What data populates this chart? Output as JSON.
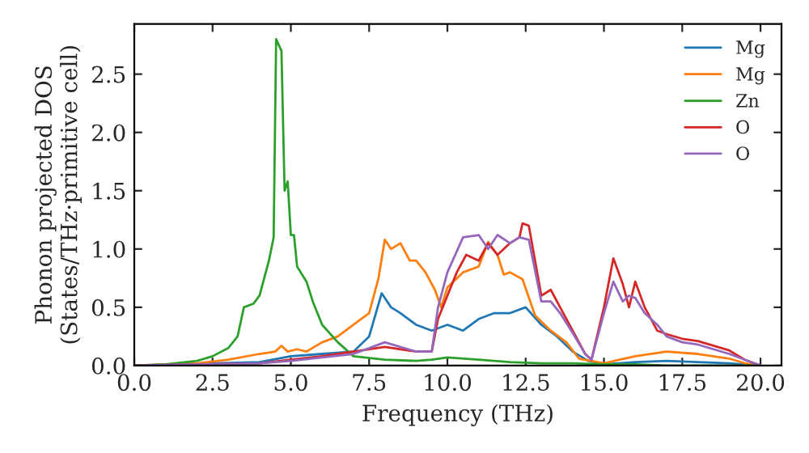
{
  "chart_data": {
    "type": "line",
    "xlabel": "Frequency (THz)",
    "ylabel": "Phonon projected DOS\n(States/THz·primitive cell)",
    "xlim": [
      0,
      20.67
    ],
    "ylim": [
      0,
      2.93
    ],
    "xticks": [
      {
        "value": 0,
        "label": "0.0"
      },
      {
        "value": 2.5,
        "label": "2.5"
      },
      {
        "value": 5,
        "label": "5.0"
      },
      {
        "value": 7.5,
        "label": "7.5"
      },
      {
        "value": 10,
        "label": "10.0"
      },
      {
        "value": 12.5,
        "label": "12.5"
      },
      {
        "value": 15,
        "label": "15.0"
      },
      {
        "value": 17.5,
        "label": "17.5"
      },
      {
        "value": 20,
        "label": "20.0"
      }
    ],
    "yticks": [
      {
        "value": 0,
        "label": "0.0"
      },
      {
        "value": 0.5,
        "label": "0.5"
      },
      {
        "value": 1,
        "label": "1.0"
      },
      {
        "value": 1.5,
        "label": "1.5"
      },
      {
        "value": 2,
        "label": "2.0"
      },
      {
        "value": 2.5,
        "label": "2.5"
      }
    ],
    "legend": "top right",
    "grid": false,
    "marker": "none",
    "line_style": "solid",
    "series": [
      {
        "name": "Mg",
        "color": "#1f77b4",
        "x": [
          0,
          4,
          5,
          6,
          7,
          7.5,
          7.9,
          8.2,
          8.5,
          9,
          9.5,
          10,
          10.5,
          11,
          11.5,
          12,
          12.5,
          13,
          13.5,
          14,
          14.5,
          15,
          16,
          17,
          18,
          19,
          20
        ],
        "values": [
          0,
          0.03,
          0.08,
          0.1,
          0.12,
          0.25,
          0.62,
          0.5,
          0.45,
          0.35,
          0.3,
          0.35,
          0.3,
          0.4,
          0.45,
          0.45,
          0.5,
          0.35,
          0.25,
          0.12,
          0.04,
          0.01,
          0.03,
          0.04,
          0.03,
          0.02,
          0
        ]
      },
      {
        "name": "Mg",
        "color": "#ff7f0e",
        "x": [
          0,
          2,
          3,
          4,
          4.5,
          4.7,
          4.9,
          5.2,
          5.5,
          6,
          6.5,
          7,
          7.5,
          7.8,
          8,
          8.2,
          8.5,
          8.8,
          9,
          9.3,
          9.6,
          9.8,
          10,
          10.5,
          11,
          11.3,
          11.6,
          11.8,
          12,
          12.4,
          12.8,
          13.3,
          13.8,
          14.2,
          15,
          15.5,
          16,
          17,
          18,
          19,
          19.5,
          20
        ],
        "values": [
          0,
          0.02,
          0.05,
          0.1,
          0.12,
          0.17,
          0.12,
          0.14,
          0.12,
          0.2,
          0.25,
          0.35,
          0.45,
          0.75,
          1.08,
          1.0,
          1.05,
          0.9,
          0.9,
          0.8,
          0.65,
          0.5,
          0.67,
          0.8,
          0.85,
          1.06,
          0.95,
          0.78,
          0.8,
          0.74,
          0.43,
          0.3,
          0.2,
          0.06,
          0.02,
          0.05,
          0.08,
          0.12,
          0.1,
          0.06,
          0.02,
          0
        ]
      },
      {
        "name": "Zn",
        "color": "#2ca02c",
        "x": [
          0,
          1,
          2,
          2.5,
          3,
          3.3,
          3.5,
          3.8,
          4,
          4.3,
          4.45,
          4.53,
          4.7,
          4.8,
          4.9,
          5,
          5.1,
          5.2,
          5.5,
          5.7,
          6,
          6.5,
          7,
          8,
          9,
          9.5,
          10,
          11,
          12,
          13,
          14,
          15,
          16,
          17,
          20
        ],
        "values": [
          0,
          0.01,
          0.04,
          0.08,
          0.15,
          0.25,
          0.5,
          0.53,
          0.6,
          0.9,
          1.1,
          2.8,
          2.7,
          1.5,
          1.58,
          1.12,
          1.12,
          0.85,
          0.72,
          0.55,
          0.35,
          0.2,
          0.08,
          0.05,
          0.04,
          0.05,
          0.07,
          0.05,
          0.03,
          0.02,
          0.02,
          0.01,
          0.01,
          0,
          0
        ]
      },
      {
        "name": "O",
        "color": "#d62728",
        "x": [
          0,
          4,
          5,
          6,
          7,
          8,
          9,
          9.5,
          9.7,
          10,
          10.3,
          10.6,
          11,
          11.3,
          11.6,
          12,
          12.3,
          12.4,
          12.6,
          13,
          13.3,
          13.6,
          14,
          14.4,
          14.6,
          15,
          15.3,
          15.6,
          15.8,
          16,
          16.3,
          16.7,
          17,
          17.5,
          18,
          19,
          19.5,
          20
        ],
        "values": [
          0,
          0.02,
          0.05,
          0.08,
          0.12,
          0.16,
          0.12,
          0.12,
          0.4,
          0.6,
          0.8,
          0.95,
          0.9,
          1.05,
          0.95,
          1.05,
          1.1,
          1.22,
          1.2,
          0.6,
          0.65,
          0.5,
          0.3,
          0.1,
          0.05,
          0.5,
          0.92,
          0.7,
          0.5,
          0.72,
          0.5,
          0.3,
          0.27,
          0.23,
          0.21,
          0.13,
          0.05,
          0
        ]
      },
      {
        "name": "O",
        "color": "#9467bd",
        "x": [
          0,
          4,
          5,
          6,
          7,
          8,
          9,
          9.5,
          9.7,
          10,
          10.5,
          11,
          11.3,
          11.6,
          12,
          12.3,
          12.6,
          13,
          13.3,
          13.6,
          14,
          14.4,
          14.6,
          15,
          15.3,
          15.6,
          15.8,
          16,
          16.3,
          16.7,
          17,
          17.5,
          18,
          19,
          19.5,
          20
        ],
        "values": [
          0,
          0.02,
          0.04,
          0.07,
          0.1,
          0.2,
          0.12,
          0.12,
          0.5,
          0.8,
          1.1,
          1.12,
          1.0,
          1.12,
          1.05,
          1.1,
          1.08,
          0.55,
          0.55,
          0.45,
          0.28,
          0.1,
          0.05,
          0.45,
          0.72,
          0.55,
          0.6,
          0.58,
          0.45,
          0.35,
          0.25,
          0.2,
          0.18,
          0.1,
          0.05,
          0
        ]
      }
    ]
  }
}
